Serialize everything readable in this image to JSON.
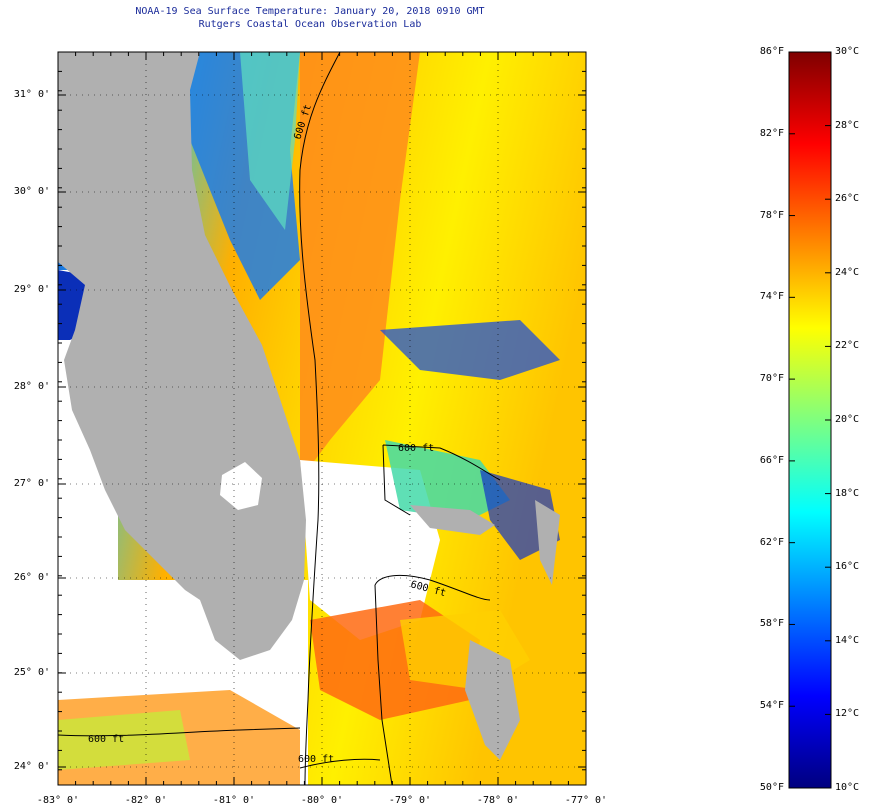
{
  "header": {
    "title_line1": "NOAA-19 Sea Surface Temperature:  January 20, 2018 0910 GMT",
    "title_line2": "Rutgers Coastal Ocean Observation Lab"
  },
  "map": {
    "lat_labels": [
      "31° 0'",
      "30° 0'",
      "29° 0'",
      "28° 0'",
      "27° 0'",
      "26° 0'",
      "25° 0'",
      "24° 0'"
    ],
    "lon_labels": [
      "-83° 0'",
      "-82° 0'",
      "-81° 0'",
      "-80° 0'",
      "-79° 0'",
      "-78° 0'",
      "-77° 0'"
    ],
    "contour_labels": [
      "600 ft",
      "600 ft",
      "600 ft",
      "600 ft",
      "600 ft"
    ],
    "colors": {
      "land": "#b0b0b0",
      "cloud": "#ffffff",
      "contour": "#000000"
    }
  },
  "colorbar": {
    "fahrenheit_labels": [
      "86°F",
      "82°F",
      "78°F",
      "74°F",
      "70°F",
      "66°F",
      "62°F",
      "58°F",
      "54°F",
      "50°F"
    ],
    "celsius_labels": [
      "30°C",
      "28°C",
      "26°C",
      "24°C",
      "22°C",
      "20°C",
      "18°C",
      "16°C",
      "14°C",
      "12°C",
      "10°C"
    ],
    "fahrenheit_values": [
      86,
      82,
      78,
      74,
      70,
      66,
      62,
      58,
      54,
      50
    ],
    "celsius_values": [
      30,
      28,
      26,
      24,
      22,
      20,
      18,
      16,
      14,
      12,
      10
    ],
    "range_f": [
      50,
      86
    ],
    "colormap": [
      "#00007f",
      "#0000ff",
      "#007fff",
      "#00ffff",
      "#7fff7f",
      "#ffff00",
      "#ff7f00",
      "#ff0000",
      "#7f0000"
    ]
  }
}
